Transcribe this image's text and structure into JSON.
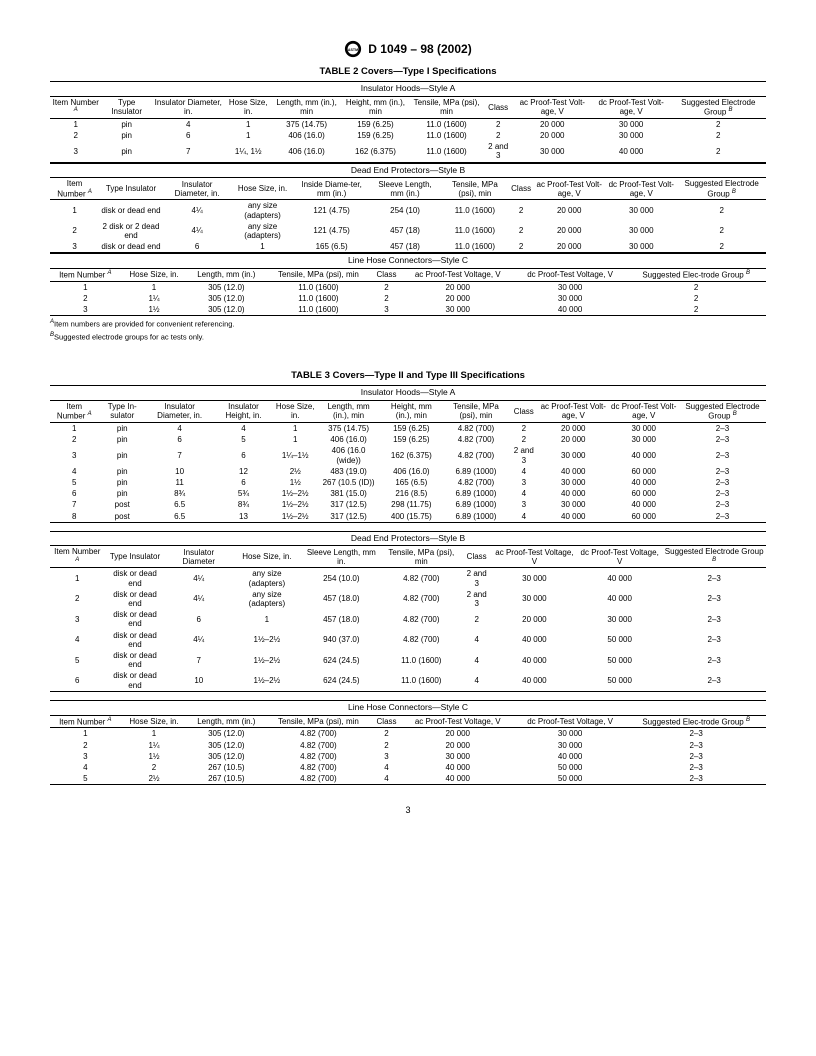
{
  "doc_header": "D 1049 – 98 (2002)",
  "page_number": "3",
  "footnotes": {
    "a": "Item numbers are provided for convenient referencing.",
    "b": "Suggested electrode groups for ac tests only."
  },
  "table2": {
    "title": "TABLE 2  Covers—Type I Specifications",
    "sectionA": {
      "title": "Insulator Hoods—Style A",
      "headers": [
        "Item Number",
        "Type Insulator",
        "Insulator Diameter, in.",
        "Hose Size, in.",
        "Length, mm (in.), min",
        "Height, mm (in.), min",
        "Tensile, MPa (psi), min",
        "Class",
        "ac Proof-Test Volt-age, V",
        "dc Proof-Test Volt-age, V",
        "Suggested Electrode Group"
      ],
      "rows": [
        [
          "1",
          "pin",
          "4",
          "1",
          "375 (14.75)",
          "159 (6.25)",
          "11.0 (1600)",
          "2",
          "20 000",
          "30 000",
          "2"
        ],
        [
          "2",
          "pin",
          "6",
          "1",
          "406 (16.0)",
          "159 (6.25)",
          "11.0 (1600)",
          "2",
          "20 000",
          "30 000",
          "2"
        ],
        [
          "3",
          "pin",
          "7",
          "1¼, 1½",
          "406 (16.0)",
          "162 (6.375)",
          "11.0 (1600)",
          "2 and 3",
          "30 000",
          "40 000",
          "2"
        ]
      ]
    },
    "sectionB": {
      "title": "Dead End Protectors—Style B",
      "headers": [
        "Item Number",
        "Type Insulator",
        "Insulator Diameter, in.",
        "Hose Size, in.",
        "Inside Diame-ter, mm (in.)",
        "Sleeve Length, mm (in.)",
        "Tensile, MPa (psi), min",
        "Class",
        "ac Proof-Test Volt-age, V",
        "dc Proof-Test Volt-age, V",
        "Suggested Electrode Group"
      ],
      "rows": [
        [
          "1",
          "disk or dead end",
          "4¼",
          "any size (adapters)",
          "121 (4.75)",
          "254 (10)",
          "11.0 (1600)",
          "2",
          "20 000",
          "30 000",
          "2"
        ],
        [
          "2",
          "2 disk or 2 dead end",
          "4¼",
          "any size (adapters)",
          "121 (4.75)",
          "457 (18)",
          "11.0 (1600)",
          "2",
          "20 000",
          "30 000",
          "2"
        ],
        [
          "3",
          "disk or dead end",
          "6",
          "1",
          "165 (6.5)",
          "457 (18)",
          "11.0 (1600)",
          "2",
          "20 000",
          "30 000",
          "2"
        ]
      ]
    },
    "sectionC": {
      "title": "Line Hose Connectors—Style C",
      "headers": [
        "Item Number",
        "Hose Size, in.",
        "Length, mm (in.)",
        "Tensile, MPa (psi), min",
        "Class",
        "ac Proof-Test Voltage, V",
        "dc Proof-Test Voltage, V",
        "Suggested Elec-trode Group"
      ],
      "rows": [
        [
          "1",
          "1",
          "305 (12.0)",
          "11.0 (1600)",
          "2",
          "20 000",
          "30 000",
          "2"
        ],
        [
          "2",
          "1¼",
          "305 (12.0)",
          "11.0 (1600)",
          "2",
          "20 000",
          "30 000",
          "2"
        ],
        [
          "3",
          "1½",
          "305 (12.0)",
          "11.0 (1600)",
          "3",
          "30 000",
          "40 000",
          "2"
        ]
      ]
    }
  },
  "table3": {
    "title": "TABLE 3  Covers—Type II and Type III Specifications",
    "sectionA": {
      "title": "Insulator Hoods—Style A",
      "headers": [
        "Item Number",
        "Type In-sulator",
        "Insulator Diameter, in.",
        "Insulator Height, in.",
        "Hose Size, in.",
        "Length, mm (in.), min",
        "Height, mm (in.), min",
        "Tensile, MPa (psi), min",
        "Class",
        "ac Proof-Test Volt-age, V",
        "dc Proof-Test Volt-age, V",
        "Suggested Electrode Group"
      ],
      "rows": [
        [
          "1",
          "pin",
          "4",
          "4",
          "1",
          "375 (14.75)",
          "159 (6.25)",
          "4.82 (700)",
          "2",
          "20 000",
          "30 000",
          "2–3"
        ],
        [
          "2",
          "pin",
          "6",
          "5",
          "1",
          "406 (16.0)",
          "159 (6.25)",
          "4.82 (700)",
          "2",
          "20 000",
          "30 000",
          "2–3"
        ],
        [
          "3",
          "pin",
          "7",
          "6",
          "1¼–1½",
          "406 (16.0 (wide))",
          "162 (6.375)",
          "4.82 (700)",
          "2 and 3",
          "30 000",
          "40 000",
          "2–3"
        ],
        [
          "4",
          "pin",
          "10",
          "12",
          "2½",
          "483 (19.0)",
          "406 (16.0)",
          "6.89 (1000)",
          "4",
          "40 000",
          "60 000",
          "2–3"
        ],
        [
          "5",
          "pin",
          "11",
          "6",
          "1½",
          "267 (10.5 (ID))",
          "165 (6.5)",
          "4.82 (700)",
          "3",
          "30 000",
          "40 000",
          "2–3"
        ],
        [
          "6",
          "pin",
          "8¾",
          "5¾",
          "1½–2½",
          "381 (15.0)",
          "216 (8.5)",
          "6.89 (1000)",
          "4",
          "40 000",
          "60 000",
          "2–3"
        ],
        [
          "7",
          "post",
          "6.5",
          "8¾",
          "1½–2½",
          "317 (12.5)",
          "298 (11.75)",
          "6.89 (1000)",
          "3",
          "30 000",
          "40 000",
          "2–3"
        ],
        [
          "8",
          "post",
          "6.5",
          "13",
          "1½–2½",
          "317 (12.5)",
          "400 (15.75)",
          "6.89 (1000)",
          "4",
          "40 000",
          "60 000",
          "2–3"
        ]
      ]
    },
    "sectionB": {
      "title": "Dead End Protectors—Style B",
      "headers": [
        "Item Number",
        "Type Insulator",
        "Insulator Diameter",
        "Hose Size, in.",
        "Sleeve Length, mm in.",
        "Tensile, MPa (psi), min",
        "Class",
        "ac Proof-Test Voltage, V",
        "dc Proof-Test Voltage, V",
        "Suggested Electrode Group"
      ],
      "rows": [
        [
          "1",
          "disk or dead end",
          "4¼",
          "any size (adapters)",
          "254 (10.0)",
          "4.82 (700)",
          "2 and 3",
          "30 000",
          "40 000",
          "2–3"
        ],
        [
          "2",
          "disk or dead end",
          "4¼",
          "any size (adapters)",
          "457 (18.0)",
          "4.82 (700)",
          "2 and 3",
          "30 000",
          "40 000",
          "2–3"
        ],
        [
          "3",
          "disk or dead end",
          "6",
          "1",
          "457 (18.0)",
          "4.82 (700)",
          "2",
          "20 000",
          "30 000",
          "2–3"
        ],
        [
          "4",
          "disk or dead end",
          "4¼",
          "1½–2½",
          "940 (37.0)",
          "4.82 (700)",
          "4",
          "40 000",
          "50 000",
          "2–3"
        ],
        [
          "5",
          "disk or dead end",
          "7",
          "1½–2½",
          "624 (24.5)",
          "11.0 (1600)",
          "4",
          "40 000",
          "50 000",
          "2–3"
        ],
        [
          "6",
          "disk or dead end",
          "10",
          "1½–2½",
          "624 (24.5)",
          "11.0 (1600)",
          "4",
          "40 000",
          "50 000",
          "2–3"
        ]
      ]
    },
    "sectionC": {
      "title": "Line Hose Connectors—Style C",
      "headers": [
        "Item Number",
        "Hose Size, in.",
        "Length, mm (in.)",
        "Tensile, MPa (psi), min",
        "Class",
        "ac Proof-Test Voltage, V",
        "dc Proof-Test Voltage, V",
        "Suggested Elec-trode Group"
      ],
      "rows": [
        [
          "1",
          "1",
          "305 (12.0)",
          "4.82 (700)",
          "2",
          "20 000",
          "30 000",
          "2–3"
        ],
        [
          "2",
          "1¼",
          "305 (12.0)",
          "4.82 (700)",
          "2",
          "20 000",
          "30 000",
          "2–3"
        ],
        [
          "3",
          "1½",
          "305 (12.0)",
          "4.82 (700)",
          "3",
          "30 000",
          "40 000",
          "2–3"
        ],
        [
          "4",
          "2",
          "267 (10.5)",
          "4.82 (700)",
          "4",
          "40 000",
          "50 000",
          "2–3"
        ],
        [
          "5",
          "2½",
          "267 (10.5)",
          "4.82 (700)",
          "4",
          "40 000",
          "50 000",
          "2–3"
        ]
      ]
    }
  }
}
